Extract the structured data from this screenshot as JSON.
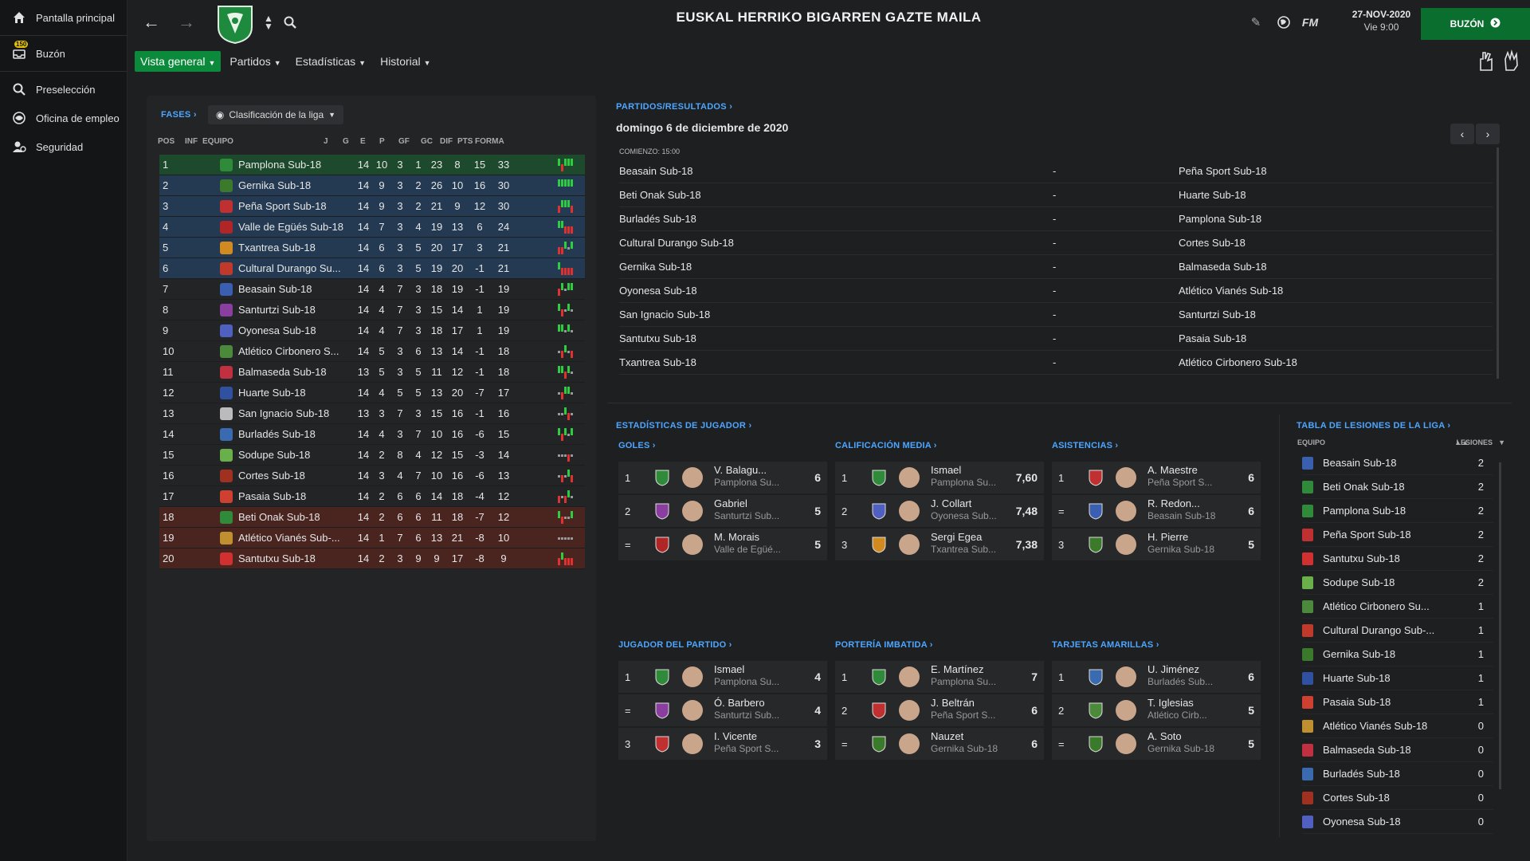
{
  "sidebar": {
    "items": [
      {
        "label": "Pantalla principal",
        "icon": "home-icon"
      },
      {
        "label": "Buzón",
        "icon": "inbox-icon",
        "badge": "150"
      },
      {
        "label": "Preselección",
        "icon": "search-icon"
      },
      {
        "label": "Oficina de empleo",
        "icon": "job-icon"
      },
      {
        "label": "Seguridad",
        "icon": "security-icon"
      }
    ]
  },
  "header": {
    "title": "EUSKAL HERRIKO BIGARREN GAZTE MAILA",
    "date": "27-NOV-2020",
    "day": "Vie 9:00",
    "inbox_label": "BUZÓN",
    "fm_label": "FM"
  },
  "tabs": [
    {
      "label": "Vista general",
      "active": true
    },
    {
      "label": "Partidos"
    },
    {
      "label": "Estadísticas"
    },
    {
      "label": "Historial"
    }
  ],
  "standings": {
    "phases_link": "FASES",
    "view_dropdown": "Clasificación de la liga",
    "columns": [
      "POS",
      "INF",
      "EQUIPO",
      "J",
      "G",
      "E",
      "P",
      "GF",
      "GC",
      "DIF",
      "PTS",
      "FORMA"
    ],
    "rows": [
      {
        "pos": "1",
        "team": "Pamplona Sub-18",
        "j": "14",
        "g": "10",
        "e": "3",
        "p": "1",
        "gf": "23",
        "gc": "8",
        "dif": "15",
        "pts": "33",
        "zone": "prom",
        "crest": "#2f8a3a",
        "form": "WLWWW"
      },
      {
        "pos": "2",
        "team": "Gernika Sub-18",
        "j": "14",
        "g": "9",
        "e": "3",
        "p": "2",
        "gf": "26",
        "gc": "10",
        "dif": "16",
        "pts": "30",
        "zone": "playoff",
        "crest": "#3b7a2a",
        "form": "WWWWW"
      },
      {
        "pos": "3",
        "team": "Peña Sport Sub-18",
        "j": "14",
        "g": "9",
        "e": "3",
        "p": "2",
        "gf": "21",
        "gc": "9",
        "dif": "12",
        "pts": "30",
        "zone": "playoff",
        "crest": "#c03030",
        "form": "LWWWL"
      },
      {
        "pos": "4",
        "team": "Valle de Egüés Sub-18",
        "j": "14",
        "g": "7",
        "e": "3",
        "p": "4",
        "gf": "19",
        "gc": "13",
        "dif": "6",
        "pts": "24",
        "zone": "playoff",
        "crest": "#b02525",
        "form": "WWLLL"
      },
      {
        "pos": "5",
        "team": "Txantrea Sub-18",
        "j": "14",
        "g": "6",
        "e": "3",
        "p": "5",
        "gf": "20",
        "gc": "17",
        "dif": "3",
        "pts": "21",
        "zone": "playoff",
        "crest": "#d08a20",
        "form": "LLWDW"
      },
      {
        "pos": "6",
        "team": "Cultural Durango Su...",
        "j": "14",
        "g": "6",
        "e": "3",
        "p": "5",
        "gf": "19",
        "gc": "20",
        "dif": "-1",
        "pts": "21",
        "zone": "playoff",
        "crest": "#c0392b",
        "form": "WLLLL"
      },
      {
        "pos": "7",
        "team": "Beasain Sub-18",
        "j": "14",
        "g": "4",
        "e": "7",
        "p": "3",
        "gf": "18",
        "gc": "19",
        "dif": "-1",
        "pts": "19",
        "zone": "",
        "crest": "#3a5fb0",
        "form": "LWDWW"
      },
      {
        "pos": "8",
        "team": "Santurtzi Sub-18",
        "j": "14",
        "g": "4",
        "e": "7",
        "p": "3",
        "gf": "15",
        "gc": "14",
        "dif": "1",
        "pts": "19",
        "zone": "",
        "crest": "#8a3fa0",
        "form": "WLDWD"
      },
      {
        "pos": "9",
        "team": "Oyonesa Sub-18",
        "j": "14",
        "g": "4",
        "e": "7",
        "p": "3",
        "gf": "18",
        "gc": "17",
        "dif": "1",
        "pts": "19",
        "zone": "",
        "crest": "#5060c0",
        "form": "WWDWD"
      },
      {
        "pos": "10",
        "team": "Atlético Cirbonero S...",
        "j": "14",
        "g": "5",
        "e": "3",
        "p": "6",
        "gf": "13",
        "gc": "14",
        "dif": "-1",
        "pts": "18",
        "zone": "",
        "crest": "#4a8a3a",
        "form": "DLWDL"
      },
      {
        "pos": "11",
        "team": "Balmaseda Sub-18",
        "j": "13",
        "g": "5",
        "e": "3",
        "p": "5",
        "gf": "11",
        "gc": "12",
        "dif": "-1",
        "pts": "18",
        "zone": "",
        "crest": "#c03040",
        "form": "WWLWD"
      },
      {
        "pos": "12",
        "team": "Huarte Sub-18",
        "j": "14",
        "g": "4",
        "e": "5",
        "p": "5",
        "gf": "13",
        "gc": "20",
        "dif": "-7",
        "pts": "17",
        "zone": "",
        "crest": "#3050a0",
        "form": "DLWWD"
      },
      {
        "pos": "13",
        "team": "San Ignacio Sub-18",
        "j": "13",
        "g": "3",
        "e": "7",
        "p": "3",
        "gf": "15",
        "gc": "16",
        "dif": "-1",
        "pts": "16",
        "zone": "",
        "crest": "#bbbbbb",
        "form": "DDWLD"
      },
      {
        "pos": "14",
        "team": "Burladés Sub-18",
        "j": "14",
        "g": "4",
        "e": "3",
        "p": "7",
        "gf": "10",
        "gc": "16",
        "dif": "-6",
        "pts": "15",
        "zone": "",
        "crest": "#3a6ab0",
        "form": "WLWDW"
      },
      {
        "pos": "15",
        "team": "Sodupe Sub-18",
        "j": "14",
        "g": "2",
        "e": "8",
        "p": "4",
        "gf": "12",
        "gc": "15",
        "dif": "-3",
        "pts": "14",
        "zone": "",
        "crest": "#6ab04a",
        "form": "DDDLD"
      },
      {
        "pos": "16",
        "team": "Cortes Sub-18",
        "j": "14",
        "g": "3",
        "e": "4",
        "p": "7",
        "gf": "10",
        "gc": "16",
        "dif": "-6",
        "pts": "13",
        "zone": "",
        "crest": "#a03020",
        "form": "DLDWL"
      },
      {
        "pos": "17",
        "team": "Pasaia Sub-18",
        "j": "14",
        "g": "2",
        "e": "6",
        "p": "6",
        "gf": "14",
        "gc": "18",
        "dif": "-4",
        "pts": "12",
        "zone": "",
        "crest": "#d04030",
        "form": "LDLWD"
      },
      {
        "pos": "18",
        "team": "Beti Onak Sub-18",
        "j": "14",
        "g": "2",
        "e": "6",
        "p": "6",
        "gf": "11",
        "gc": "18",
        "dif": "-7",
        "pts": "12",
        "zone": "releg",
        "crest": "#2f8a3a",
        "form": "WLDDW"
      },
      {
        "pos": "19",
        "team": "Atlético Vianés Sub-...",
        "j": "14",
        "g": "1",
        "e": "7",
        "p": "6",
        "gf": "13",
        "gc": "21",
        "dif": "-8",
        "pts": "10",
        "zone": "releg",
        "crest": "#c09030",
        "form": "DDDDD"
      },
      {
        "pos": "20",
        "team": "Santutxu Sub-18",
        "j": "14",
        "g": "2",
        "e": "3",
        "p": "9",
        "gf": "9",
        "gc": "17",
        "dif": "-8",
        "pts": "9",
        "zone": "releg",
        "crest": "#d03030",
        "form": "LWLLL"
      }
    ]
  },
  "colors": {
    "win": "#2ecc40",
    "loss": "#e03030",
    "draw": "#999999",
    "accent": "#0c8a3c",
    "link": "#4da6ff"
  },
  "results": {
    "title": "PARTIDOS/RESULTADOS",
    "date": "domingo 6 de diciembre de 2020",
    "kickoff": "COMIENZO: 15:00",
    "matches": [
      {
        "home": "Beasain Sub-18",
        "sep": "-",
        "away": "Peña Sport Sub-18"
      },
      {
        "home": "Beti Onak Sub-18",
        "sep": "-",
        "away": "Huarte Sub-18"
      },
      {
        "home": "Burladés Sub-18",
        "sep": "-",
        "away": "Pamplona Sub-18"
      },
      {
        "home": "Cultural Durango Sub-18",
        "sep": "-",
        "away": "Cortes Sub-18"
      },
      {
        "home": "Gernika Sub-18",
        "sep": "-",
        "away": "Balmaseda Sub-18"
      },
      {
        "home": "Oyonesa Sub-18",
        "sep": "-",
        "away": "Atlético Vianés Sub-18"
      },
      {
        "home": "San Ignacio Sub-18",
        "sep": "-",
        "away": "Santurtzi Sub-18"
      },
      {
        "home": "Santutxu Sub-18",
        "sep": "-",
        "away": "Pasaia Sub-18"
      },
      {
        "home": "Txantrea Sub-18",
        "sep": "-",
        "away": "Atlético Cirbonero Sub-18"
      }
    ]
  },
  "player_stats": {
    "title": "ESTADÍSTICAS DE JUGADOR",
    "blocks": [
      {
        "title": "GOLES",
        "rows": [
          {
            "rank": "1",
            "name": "V. Balagu...",
            "club": "Pamplona Su...",
            "value": "6",
            "crest": "#2f8a3a"
          },
          {
            "rank": "2",
            "name": "Gabriel",
            "club": "Santurtzi Sub...",
            "value": "5",
            "crest": "#8a3fa0"
          },
          {
            "rank": "=",
            "name": "M. Morais",
            "club": "Valle de Egüé...",
            "value": "5",
            "crest": "#b02525"
          }
        ]
      },
      {
        "title": "CALIFICACIÓN MEDIA",
        "rows": [
          {
            "rank": "1",
            "name": "Ismael",
            "club": "Pamplona Su...",
            "value": "7,60",
            "crest": "#2f8a3a"
          },
          {
            "rank": "2",
            "name": "J. Collart",
            "club": "Oyonesa Sub...",
            "value": "7,48",
            "crest": "#5060c0"
          },
          {
            "rank": "3",
            "name": "Sergi Egea",
            "club": "Txantrea Sub...",
            "value": "7,38",
            "crest": "#d08a20"
          }
        ]
      },
      {
        "title": "ASISTENCIAS",
        "rows": [
          {
            "rank": "1",
            "name": "A. Maestre",
            "club": "Peña Sport S...",
            "value": "6",
            "crest": "#c03030"
          },
          {
            "rank": "=",
            "name": "R. Redon...",
            "club": "Beasain Sub-18",
            "value": "6",
            "crest": "#3a5fb0"
          },
          {
            "rank": "3",
            "name": "H. Pierre",
            "club": "Gernika Sub-18",
            "value": "5",
            "crest": "#3b7a2a"
          }
        ]
      },
      {
        "title": "JUGADOR DEL PARTIDO",
        "rows": [
          {
            "rank": "1",
            "name": "Ismael",
            "club": "Pamplona Su...",
            "value": "4",
            "crest": "#2f8a3a"
          },
          {
            "rank": "=",
            "name": "Ó. Barbero",
            "club": "Santurtzi Sub...",
            "value": "4",
            "crest": "#8a3fa0"
          },
          {
            "rank": "3",
            "name": "I. Vicente",
            "club": "Peña Sport S...",
            "value": "3",
            "crest": "#c03030"
          }
        ]
      },
      {
        "title": "PORTERÍA IMBATIDA",
        "rows": [
          {
            "rank": "1",
            "name": "E. Martínez",
            "club": "Pamplona Su...",
            "value": "7",
            "crest": "#2f8a3a"
          },
          {
            "rank": "2",
            "name": "J. Beltrán",
            "club": "Peña Sport S...",
            "value": "6",
            "crest": "#c03030"
          },
          {
            "rank": "=",
            "name": "Nauzet",
            "club": "Gernika Sub-18",
            "value": "6",
            "crest": "#3b7a2a"
          }
        ]
      },
      {
        "title": "TARJETAS AMARILLAS",
        "rows": [
          {
            "rank": "1",
            "name": "U. Jiménez",
            "club": "Burladés Sub...",
            "value": "6",
            "crest": "#3a6ab0"
          },
          {
            "rank": "2",
            "name": "T. Iglesias",
            "club": "Atlético Cirb...",
            "value": "5",
            "crest": "#4a8a3a"
          },
          {
            "rank": "=",
            "name": "A. Soto",
            "club": "Gernika Sub-18",
            "value": "5",
            "crest": "#3b7a2a"
          }
        ]
      }
    ]
  },
  "injuries": {
    "title": "TABLA DE LESIONES DE LA LIGA",
    "col_team": "EQUIPO",
    "col_injuries": "LESIONES",
    "rows": [
      {
        "team": "Beasain Sub-18",
        "value": "2",
        "crest": "#3a5fb0"
      },
      {
        "team": "Beti Onak Sub-18",
        "value": "2",
        "crest": "#2f8a3a"
      },
      {
        "team": "Pamplona Sub-18",
        "value": "2",
        "crest": "#2f8a3a"
      },
      {
        "team": "Peña Sport Sub-18",
        "value": "2",
        "crest": "#c03030"
      },
      {
        "team": "Santutxu Sub-18",
        "value": "2",
        "crest": "#d03030"
      },
      {
        "team": "Sodupe Sub-18",
        "value": "2",
        "crest": "#6ab04a"
      },
      {
        "team": "Atlético Cirbonero Su...",
        "value": "1",
        "crest": "#4a8a3a"
      },
      {
        "team": "Cultural Durango Sub-...",
        "value": "1",
        "crest": "#c0392b"
      },
      {
        "team": "Gernika Sub-18",
        "value": "1",
        "crest": "#3b7a2a"
      },
      {
        "team": "Huarte Sub-18",
        "value": "1",
        "crest": "#3050a0"
      },
      {
        "team": "Pasaia Sub-18",
        "value": "1",
        "crest": "#d04030"
      },
      {
        "team": "Atlético Vianés Sub-18",
        "value": "0",
        "crest": "#c09030"
      },
      {
        "team": "Balmaseda Sub-18",
        "value": "0",
        "crest": "#c03040"
      },
      {
        "team": "Burladés Sub-18",
        "value": "0",
        "crest": "#3a6ab0"
      },
      {
        "team": "Cortes Sub-18",
        "value": "0",
        "crest": "#a03020"
      },
      {
        "team": "Oyonesa Sub-18",
        "value": "0",
        "crest": "#5060c0"
      }
    ]
  }
}
